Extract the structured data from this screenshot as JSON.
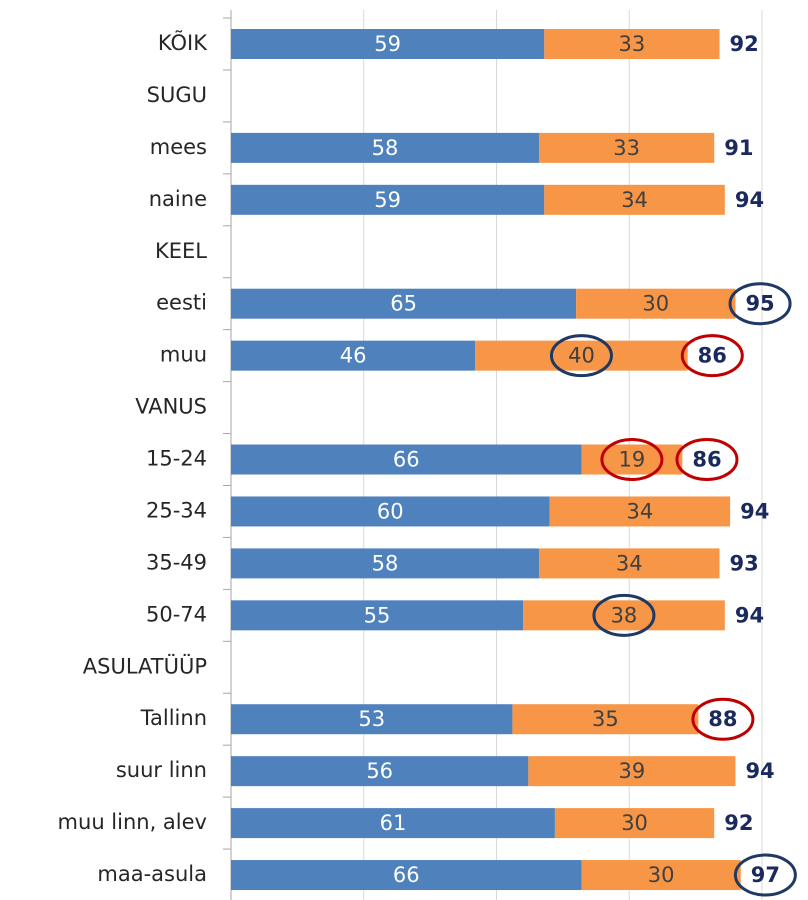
{
  "chart_data": {
    "type": "stacked-barh",
    "categories": [
      "KÕIK",
      "SUGU",
      "mees",
      "naine",
      "KEEL",
      "eesti",
      "muu",
      "VANUS",
      "15-24",
      "25-34",
      "35-49",
      "50-74",
      "ASULATÜÜP",
      "Tallinn",
      "suur linn",
      "muu linn, alev",
      "maa-asula"
    ],
    "series": [
      {
        "color": "#4f81bd",
        "values": [
          59,
          null,
          58,
          59,
          null,
          65,
          46,
          null,
          66,
          60,
          58,
          55,
          null,
          53,
          56,
          61,
          66
        ]
      },
      {
        "color": "#f79646",
        "values": [
          33,
          null,
          33,
          34,
          null,
          30,
          40,
          null,
          19,
          34,
          34,
          38,
          null,
          35,
          39,
          30,
          30
        ]
      }
    ],
    "totals": {
      "color": "#1a2a5e",
      "values": [
        92,
        null,
        91,
        94,
        null,
        95,
        86,
        null,
        86,
        94,
        93,
        94,
        null,
        88,
        94,
        92,
        97
      ]
    },
    "xlim": [
      0,
      100
    ],
    "xticks": [
      0,
      25,
      50,
      75,
      100
    ],
    "grid": true,
    "highlights": [
      {
        "target": "totals",
        "index": 5,
        "color": "#1f3864"
      },
      {
        "target": "series.1",
        "index": 6,
        "color": "#1f3864"
      },
      {
        "target": "totals",
        "index": 6,
        "color": "#c00000"
      },
      {
        "target": "series.1",
        "index": 8,
        "color": "#c00000"
      },
      {
        "target": "totals",
        "index": 8,
        "color": "#c00000"
      },
      {
        "target": "series.1",
        "index": 11,
        "color": "#1f3864"
      },
      {
        "target": "totals",
        "index": 13,
        "color": "#c00000"
      },
      {
        "target": "totals",
        "index": 16,
        "color": "#1f3864"
      }
    ]
  }
}
